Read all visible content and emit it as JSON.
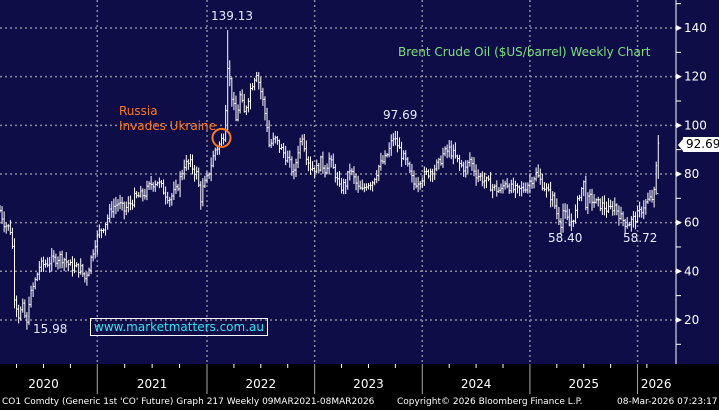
{
  "chart_data": {
    "type": "ohlc-bar",
    "title": "Brent Crude Oil ($US/barrel) Weekly Chart",
    "ylim": [
      0,
      150
    ],
    "yticks": [
      20,
      40,
      60,
      80,
      100,
      120,
      140
    ],
    "grid": true,
    "x_unit": "week index from start of 2020",
    "year_ticks": [
      {
        "label": "2020",
        "start": -5,
        "end": 47
      },
      {
        "label": "2021",
        "start": 47,
        "end": 100
      },
      {
        "label": "2022",
        "start": 100,
        "end": 152
      },
      {
        "label": "2023",
        "start": 152,
        "end": 204
      },
      {
        "label": "2024",
        "start": 204,
        "end": 256
      },
      {
        "label": "2025",
        "start": 256,
        "end": 308
      },
      {
        "label": "2026",
        "start": 308,
        "end": 326
      }
    ],
    "close_keypoints": [
      [
        0,
        65
      ],
      [
        2,
        60
      ],
      [
        5,
        57
      ],
      [
        6,
        50
      ],
      [
        7,
        30
      ],
      [
        9,
        22
      ],
      [
        11,
        25
      ],
      [
        13,
        18
      ],
      [
        14,
        28
      ],
      [
        17,
        36
      ],
      [
        19,
        42
      ],
      [
        24,
        44
      ],
      [
        29,
        46
      ],
      [
        31,
        45
      ],
      [
        34,
        42
      ],
      [
        39,
        41
      ],
      [
        41,
        37
      ],
      [
        43,
        42
      ],
      [
        46,
        52
      ],
      [
        48,
        56
      ],
      [
        51,
        60
      ],
      [
        54,
        66
      ],
      [
        57,
        68
      ],
      [
        60,
        65
      ],
      [
        65,
        70
      ],
      [
        70,
        72
      ],
      [
        73,
        76
      ],
      [
        76,
        77
      ],
      [
        80,
        72
      ],
      [
        82,
        70
      ],
      [
        85,
        73
      ],
      [
        87,
        78
      ],
      [
        89,
        84
      ],
      [
        92,
        84
      ],
      [
        95,
        80
      ],
      [
        97,
        70
      ],
      [
        98,
        74
      ],
      [
        100,
        78
      ],
      [
        102,
        84
      ],
      [
        104,
        90
      ],
      [
        106,
        92
      ],
      [
        108,
        96
      ],
      [
        109,
        108
      ],
      [
        110,
        125
      ],
      [
        112,
        112
      ],
      [
        114,
        102
      ],
      [
        116,
        112
      ],
      [
        118,
        105
      ],
      [
        121,
        115
      ],
      [
        123,
        120
      ],
      [
        124,
        122
      ],
      [
        127,
        110
      ],
      [
        129,
        100
      ],
      [
        130,
        92
      ],
      [
        133,
        94
      ],
      [
        136,
        90
      ],
      [
        139,
        86
      ],
      [
        142,
        80
      ],
      [
        144,
        90
      ],
      [
        146,
        96
      ],
      [
        148,
        88
      ],
      [
        150,
        83
      ],
      [
        153,
        82
      ],
      [
        155,
        85
      ],
      [
        157,
        82
      ],
      [
        159,
        86
      ],
      [
        162,
        80
      ],
      [
        164,
        74
      ],
      [
        167,
        76
      ],
      [
        169,
        82
      ],
      [
        171,
        78
      ],
      [
        173,
        74
      ],
      [
        175,
        73
      ],
      [
        177,
        76
      ],
      [
        180,
        77
      ],
      [
        183,
        83
      ],
      [
        186,
        86
      ],
      [
        188,
        90
      ],
      [
        190,
        95
      ],
      [
        192,
        92
      ],
      [
        194,
        88
      ],
      [
        196,
        85
      ],
      [
        198,
        80
      ],
      [
        200,
        76
      ],
      [
        203,
        78
      ],
      [
        206,
        80
      ],
      [
        209,
        82
      ],
      [
        212,
        84
      ],
      [
        214,
        88
      ],
      [
        217,
        90
      ],
      [
        219,
        88
      ],
      [
        222,
        84
      ],
      [
        225,
        82
      ],
      [
        227,
        86
      ],
      [
        230,
        80
      ],
      [
        233,
        78
      ],
      [
        236,
        76
      ],
      [
        239,
        74
      ],
      [
        242,
        73
      ],
      [
        244,
        77
      ],
      [
        247,
        74
      ],
      [
        250,
        73
      ],
      [
        253,
        74
      ],
      [
        256,
        77
      ],
      [
        259,
        80
      ],
      [
        262,
        76
      ],
      [
        265,
        72
      ],
      [
        267,
        70
      ],
      [
        269,
        64
      ],
      [
        271,
        60
      ],
      [
        272,
        65
      ],
      [
        275,
        59
      ],
      [
        278,
        64
      ],
      [
        280,
        72
      ],
      [
        282,
        76
      ],
      [
        283,
        68
      ],
      [
        285,
        70
      ],
      [
        288,
        68
      ],
      [
        291,
        67
      ],
      [
        294,
        65
      ],
      [
        297,
        67
      ],
      [
        300,
        62
      ],
      [
        302,
        60
      ],
      [
        304,
        60
      ],
      [
        307,
        62
      ],
      [
        309,
        64
      ],
      [
        311,
        67
      ],
      [
        313,
        69
      ],
      [
        315,
        70
      ],
      [
        316,
        72
      ],
      [
        318,
        92.69
      ]
    ],
    "annotations": [
      {
        "label": "139.13",
        "week": 110,
        "value": 139.13
      },
      {
        "label": "15.98",
        "week": 13,
        "value": 15.98
      },
      {
        "label": "97.69",
        "week": 190,
        "value": 97.69
      },
      {
        "label": "58.40",
        "week": 275,
        "value": 58.4
      },
      {
        "label": "58.72",
        "week": 302,
        "value": 58.72
      }
    ],
    "event": {
      "label_line1": "Russia",
      "label_line2": "Invades Ukraine",
      "week": 107,
      "value": 94
    },
    "last_price": "92.69"
  },
  "watermark": "www.marketmatters.com.au",
  "footer": {
    "left": "CO1 Comdty (Generic 1st 'CO' Future) Graph 217 Weekly 09MAR2021-08MAR2026",
    "center": "Copyright© 2026 Bloomberg Finance L.P.",
    "right": "08-Mar-2026 07:23:17"
  },
  "colors": {
    "background": "#0e0d48",
    "bars": "#ffffff",
    "title": "#7ee07e",
    "event": "#ff7a1a",
    "watermark": "#2ee6f0"
  }
}
